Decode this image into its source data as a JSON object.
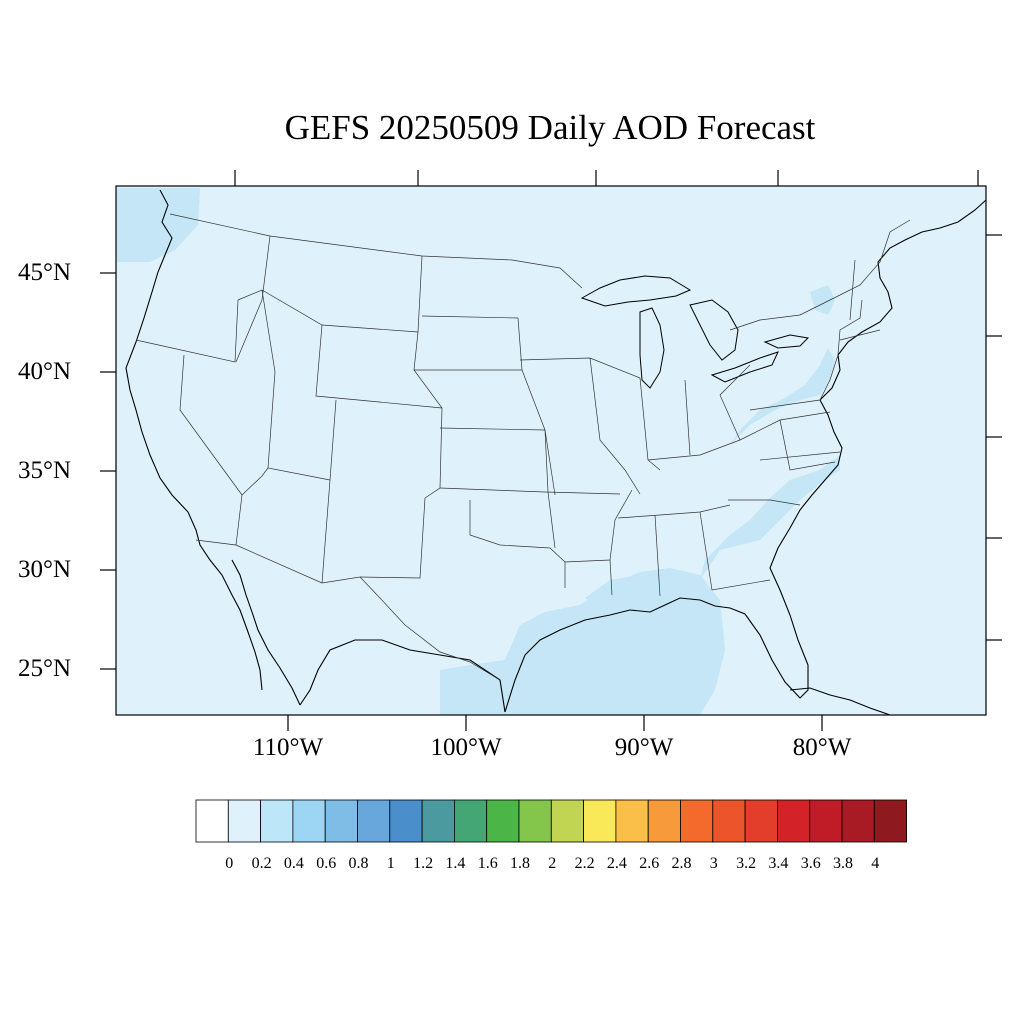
{
  "title": "GEFS 20250509 Daily AOD Forecast",
  "map": {
    "background_color": "#dff1fa",
    "haze_color": "#c4e6f7",
    "lat_labels": [
      "45°N",
      "40°N",
      "35°N",
      "30°N",
      "25°N"
    ],
    "lon_labels": [
      "110°W",
      "100°W",
      "90°W",
      "80°W"
    ]
  },
  "colorbar": {
    "colors": [
      "#ffffff",
      "#dff1fa",
      "#bde6f8",
      "#9dd6f4",
      "#7fbde6",
      "#68a7dc",
      "#4a8ecc",
      "#4a9a9f",
      "#44a674",
      "#4bb548",
      "#84c64b",
      "#c2d552",
      "#f9e858",
      "#f9bf48",
      "#f79a3c",
      "#f36a2c",
      "#ec542c",
      "#e23e2b",
      "#d42229",
      "#c01c27",
      "#a91b24",
      "#8e1a1f"
    ],
    "tick_labels": [
      "0",
      "0.2",
      "0.4",
      "0.6",
      "0.8",
      "1",
      "1.2",
      "1.4",
      "1.6",
      "1.8",
      "2",
      "2.2",
      "2.4",
      "2.6",
      "2.8",
      "3",
      "3.2",
      "3.4",
      "3.6",
      "3.8",
      "4"
    ]
  }
}
